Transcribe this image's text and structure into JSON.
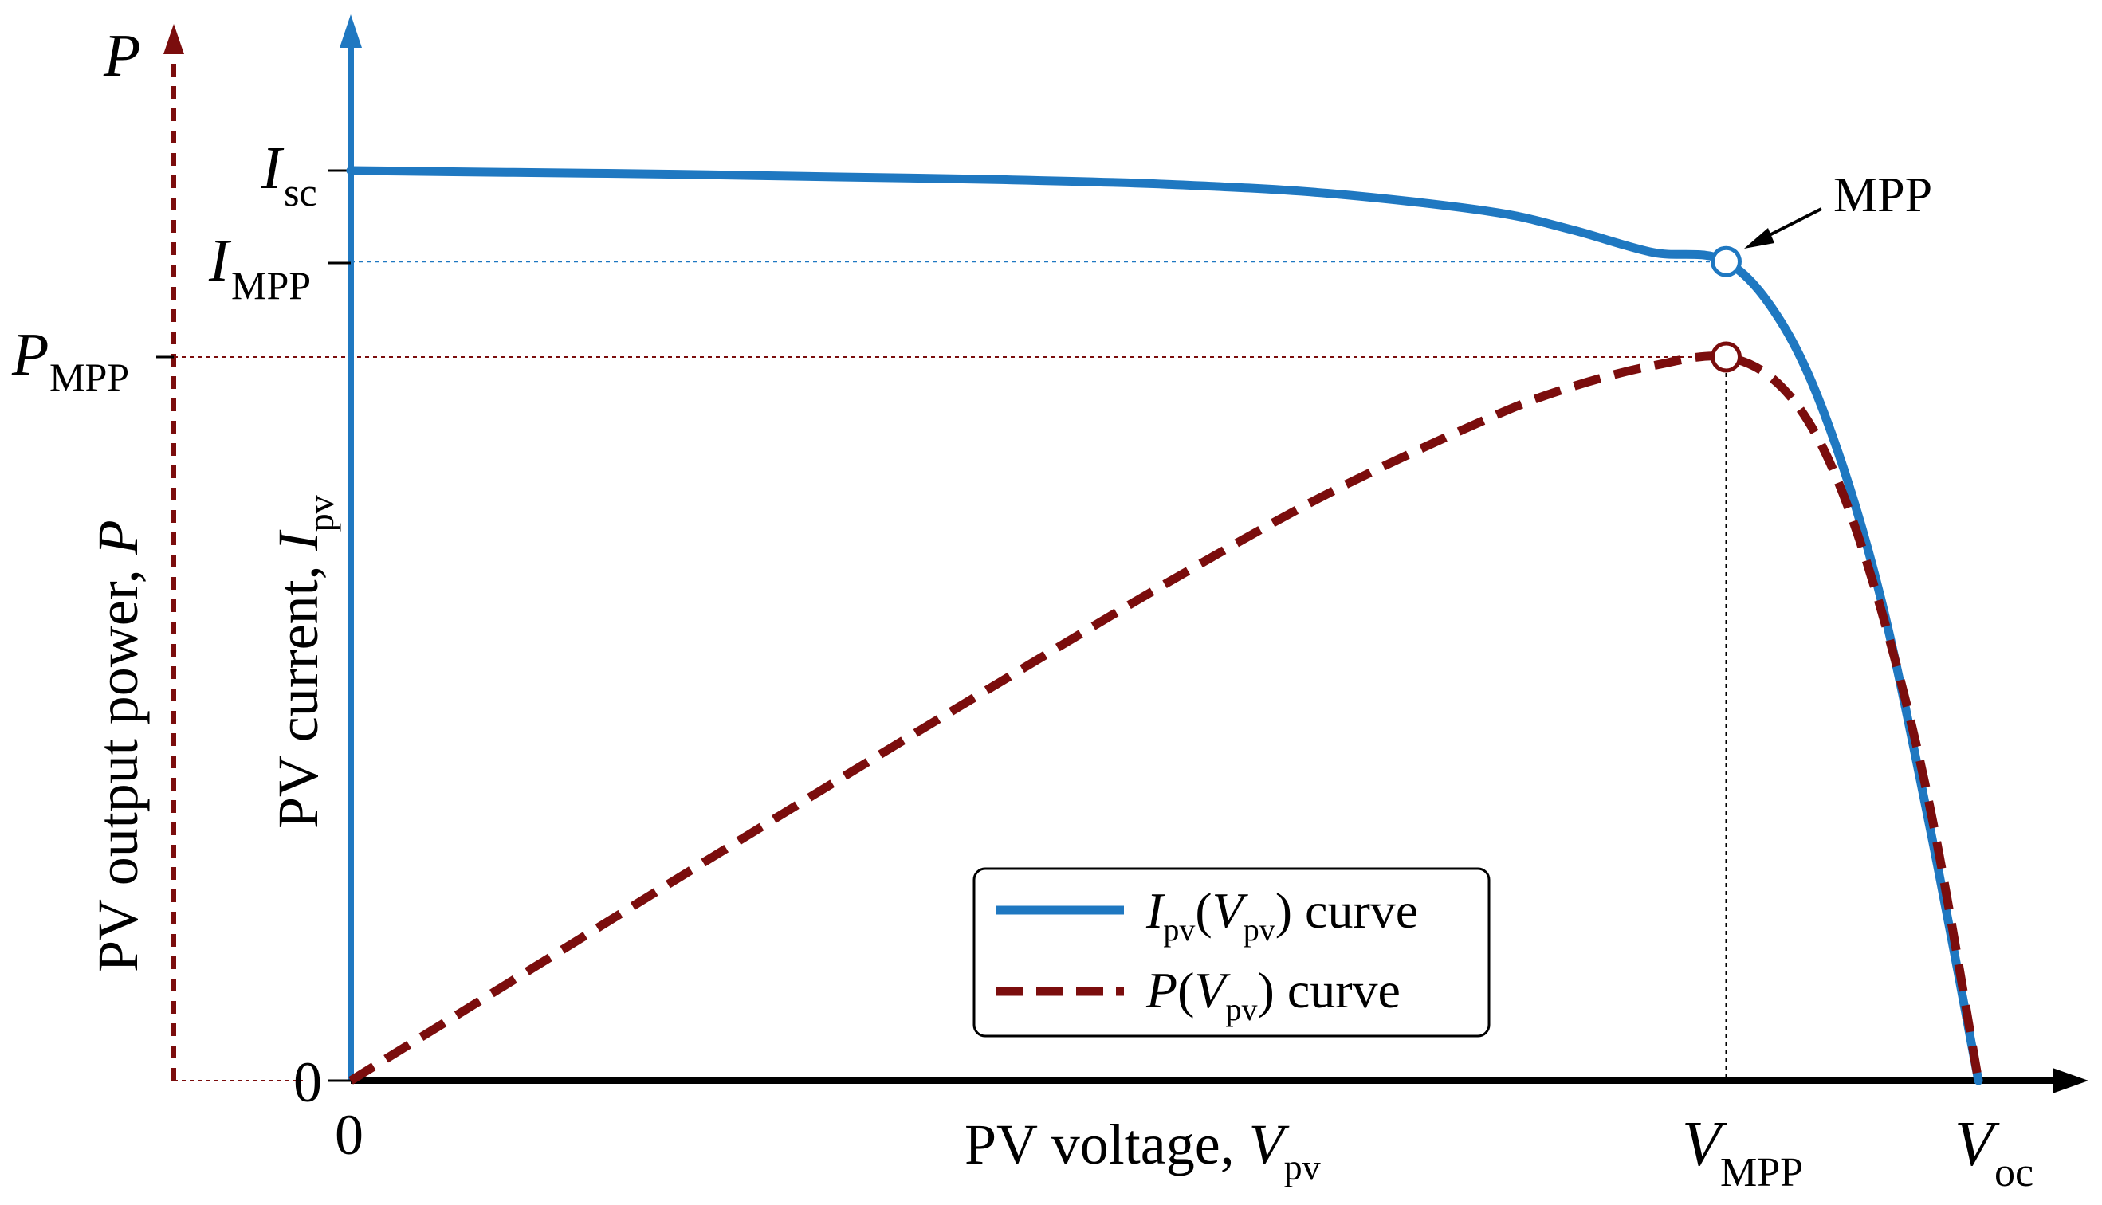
{
  "chart_data": {
    "type": "line",
    "title": "",
    "xlabel": "PV voltage, V_pv",
    "ylabel_current": "PV current, I_pv",
    "ylabel_power": "PV output power, P",
    "x_ticks": [
      "0",
      "V_MPP",
      "V_oc"
    ],
    "y_current_ticks": [
      "I_sc",
      "I_MPP"
    ],
    "y_power_ticks": [
      "P_MPP",
      "0"
    ],
    "xlim": [
      0,
      1.04
    ],
    "current_ylim": [
      0,
      1.2
    ],
    "power_ylim": [
      0,
      1.2
    ],
    "series": [
      {
        "name": "I_pv(V_pv) curve",
        "color": "#1f78c1",
        "style": "solid",
        "x": [
          0,
          0.1,
          0.2,
          0.3,
          0.4,
          0.5,
          0.6,
          0.7,
          0.75,
          0.8,
          0.845,
          0.88,
          0.91,
          0.94,
          0.97,
          1.0
        ],
        "y": [
          1.0,
          0.998,
          0.996,
          0.993,
          0.99,
          0.985,
          0.975,
          0.955,
          0.935,
          0.91,
          0.9,
          0.83,
          0.71,
          0.53,
          0.28,
          0.0
        ]
      },
      {
        "name": "P(V_pv) curve",
        "color": "#7b0d0d",
        "style": "dashed",
        "x": [
          0,
          0.1,
          0.2,
          0.3,
          0.4,
          0.5,
          0.6,
          0.7,
          0.75,
          0.8,
          0.845,
          0.88,
          0.91,
          0.94,
          0.97,
          1.0
        ],
        "y": [
          0,
          0.128,
          0.256,
          0.383,
          0.508,
          0.631,
          0.746,
          0.843,
          0.882,
          0.909,
          0.92,
          0.88,
          0.78,
          0.6,
          0.35,
          0.0
        ]
      }
    ],
    "mpp": {
      "label": "MPP",
      "v": 0.845,
      "i": 0.9,
      "p": 0.92
    },
    "legend": [
      "I_pv(V_pv) curve",
      "P(V_pv) curve"
    ],
    "legend_position": "bottom-center",
    "colors": {
      "current": "#1f78c1",
      "power": "#7b0d0d",
      "axis": "#000000"
    }
  }
}
